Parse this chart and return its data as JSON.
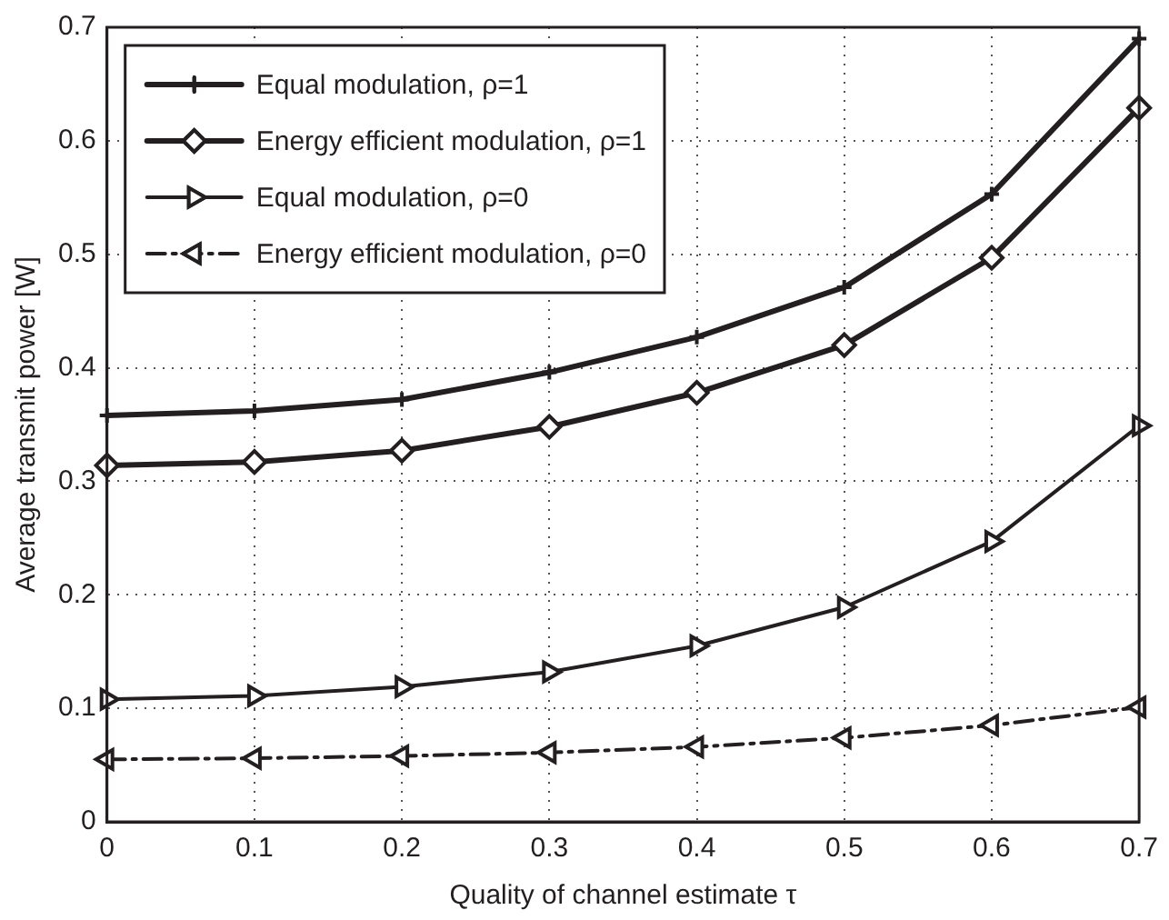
{
  "chart_data": {
    "type": "line",
    "xlabel": "Quality of channel estimate τ",
    "ylabel": "Average transmit power [W]",
    "x": [
      0,
      0.1,
      0.2,
      0.3,
      0.4,
      0.5,
      0.6,
      0.7
    ],
    "series": [
      {
        "name": "Equal modulation, ρ=1",
        "color": "#231f20",
        "marker": "cross",
        "line_style": "solid",
        "values": [
          0.358,
          0.362,
          0.372,
          0.396,
          0.427,
          0.471,
          0.553,
          0.69
        ]
      },
      {
        "name": "Energy efficient modulation, ρ=1",
        "color": "#231f20",
        "marker": "diamond",
        "line_style": "solid",
        "values": [
          0.314,
          0.317,
          0.327,
          0.348,
          0.378,
          0.42,
          0.497,
          0.629
        ]
      },
      {
        "name": "Equal modulation, ρ=0",
        "color": "#231f20",
        "marker": "triangle-right",
        "line_style": "solid",
        "values": [
          0.108,
          0.111,
          0.119,
          0.132,
          0.155,
          0.189,
          0.247,
          0.349
        ]
      },
      {
        "name": "Energy efficient modulation, ρ=0",
        "color": "#231f20",
        "marker": "triangle-left",
        "line_style": "dashed",
        "values": [
          0.055,
          0.056,
          0.058,
          0.061,
          0.066,
          0.074,
          0.085,
          0.101
        ]
      }
    ],
    "xlim": [
      0,
      0.7
    ],
    "xticks": [
      0,
      0.1,
      0.2,
      0.3,
      0.4,
      0.5,
      0.6,
      0.7
    ],
    "ylim": [
      0,
      0.7
    ],
    "yticks": [
      0,
      0.1,
      0.2,
      0.3,
      0.4,
      0.5,
      0.6,
      0.7
    ],
    "grid": true,
    "legend": "top left"
  }
}
